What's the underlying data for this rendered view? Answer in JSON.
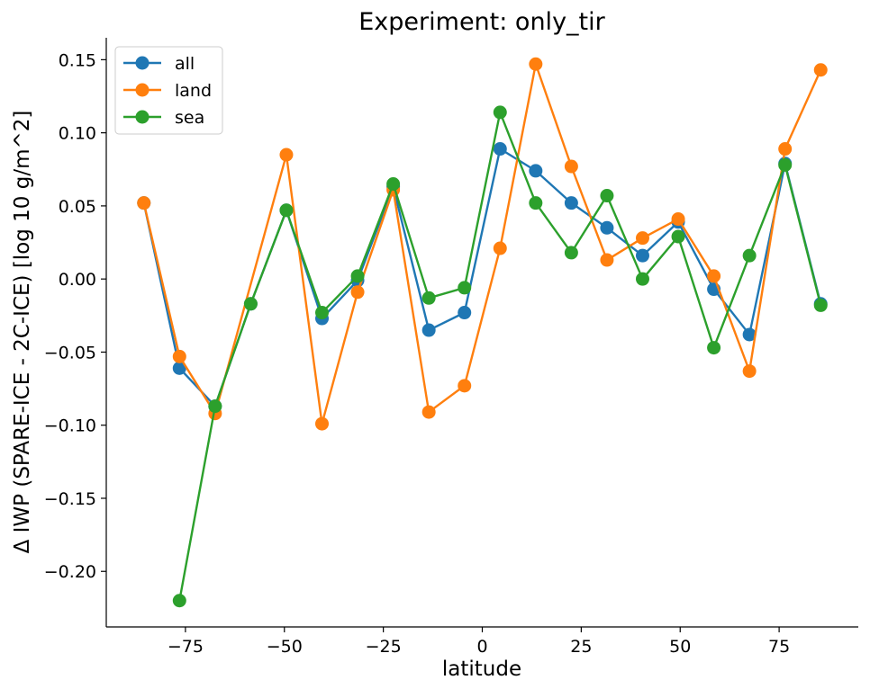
{
  "chart_data": {
    "type": "line",
    "title": "Experiment: only_tir",
    "xlabel": "latitude",
    "ylabel": "Δ IWP (SPARE-ICE - 2C-ICE) [log 10 g/m^2]",
    "xlim": [
      -95,
      95
    ],
    "ylim": [
      -0.238,
      0.165
    ],
    "xticks": [
      -75,
      -50,
      -25,
      0,
      25,
      50,
      75
    ],
    "xtick_labels": [
      "−75",
      "−50",
      "−25",
      "0",
      "25",
      "50",
      "75"
    ],
    "yticks": [
      -0.2,
      -0.15,
      -0.1,
      -0.05,
      0.0,
      0.05,
      0.1,
      0.15
    ],
    "ytick_labels": [
      "−0.20",
      "−0.15",
      "−0.10",
      "−0.05",
      "0.00",
      "0.05",
      "0.10",
      "0.15"
    ],
    "grid": false,
    "legend_position": "top-left",
    "series": [
      {
        "name": "all",
        "color": "#1f77b4",
        "x": [
          -85.5,
          -76.5,
          -67.5,
          -58.5,
          -49.5,
          -40.5,
          -31.5,
          -22.5,
          -13.5,
          -4.5,
          4.5,
          13.5,
          22.5,
          31.5,
          40.5,
          49.5,
          58.5,
          67.5,
          76.5,
          85.5
        ],
        "y": [
          0.052,
          -0.061,
          -0.087,
          -0.017,
          0.047,
          -0.027,
          -0.001,
          0.063,
          -0.035,
          -0.023,
          0.089,
          0.074,
          0.052,
          0.035,
          0.016,
          0.039,
          -0.007,
          -0.038,
          0.079,
          -0.017
        ]
      },
      {
        "name": "land",
        "color": "#ff7f0e",
        "x": [
          -85.5,
          -76.5,
          -67.5,
          -49.5,
          -40.5,
          -31.5,
          -22.5,
          -13.5,
          -4.5,
          4.5,
          13.5,
          22.5,
          31.5,
          40.5,
          49.5,
          58.5,
          67.5,
          76.5,
          85.5
        ],
        "y": [
          0.052,
          -0.053,
          -0.092,
          0.085,
          -0.099,
          -0.009,
          0.061,
          -0.091,
          -0.073,
          0.021,
          0.147,
          0.077,
          0.013,
          0.028,
          0.041,
          0.002,
          -0.063,
          0.089,
          0.143
        ]
      },
      {
        "name": "sea",
        "color": "#2ca02c",
        "x": [
          -76.5,
          -67.5,
          -58.5,
          -49.5,
          -40.5,
          -31.5,
          -22.5,
          -13.5,
          -4.5,
          4.5,
          13.5,
          22.5,
          31.5,
          40.5,
          49.5,
          58.5,
          67.5,
          76.5,
          85.5
        ],
        "y": [
          -0.22,
          -0.087,
          -0.017,
          0.047,
          -0.023,
          0.002,
          0.065,
          -0.013,
          -0.006,
          0.114,
          0.052,
          0.018,
          0.057,
          0.0,
          0.029,
          -0.047,
          0.016,
          0.078,
          -0.018
        ]
      }
    ]
  }
}
